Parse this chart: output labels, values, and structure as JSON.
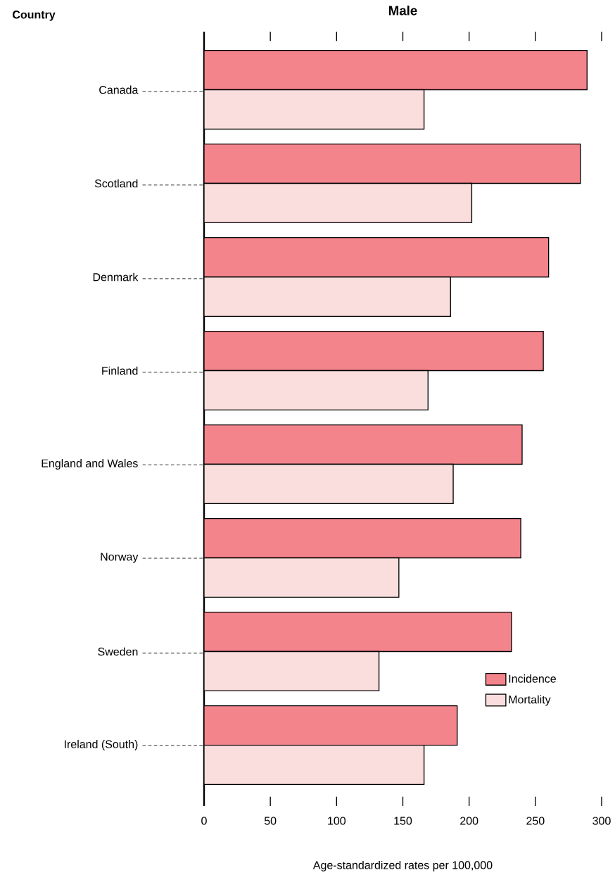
{
  "chart_data": {
    "type": "bar",
    "orientation": "horizontal",
    "title": "Male",
    "xlabel": "Age-standardized rates per 100,000",
    "annotations": [
      "Country"
    ],
    "categories": [
      "Canada",
      "Scotland",
      "Denmark",
      "Finland",
      "England and Wales",
      "Norway",
      "Sweden",
      "Ireland (South)"
    ],
    "series": [
      {
        "name": "Incidence",
        "color": "#f4848c",
        "values": [
          289,
          284,
          260,
          256,
          240,
          239,
          232,
          191
        ]
      },
      {
        "name": "Mortality",
        "color": "#f9dedd",
        "values": [
          166,
          202,
          186,
          169,
          188,
          147,
          132,
          166
        ]
      }
    ],
    "xlim": [
      0,
      300
    ],
    "xticks": [
      0,
      50,
      100,
      150,
      200,
      250,
      300
    ],
    "legend": "bottom right"
  }
}
